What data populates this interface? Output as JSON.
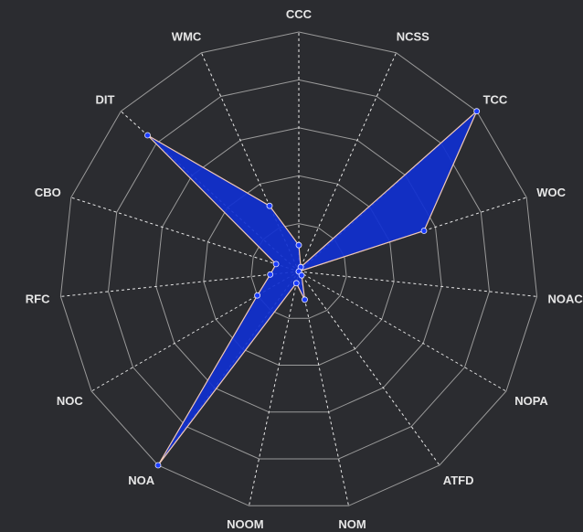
{
  "chart_data": {
    "type": "radar",
    "axes": [
      "CCC",
      "NCSS",
      "TCC",
      "WOC",
      "NOAC",
      "NOPA",
      "ATFD",
      "NOM",
      "NOOM",
      "NOA",
      "NOC",
      "RFC",
      "CBO",
      "DIT",
      "WMC"
    ],
    "values": [
      0.11,
      0.02,
      1.0,
      0.55,
      0.0,
      0.0,
      0.02,
      0.12,
      0.05,
      1.0,
      0.2,
      0.12,
      0.1,
      0.85,
      0.3
    ],
    "range": [
      0,
      1
    ],
    "rings": 5,
    "colors": {
      "fill": "#1030d0",
      "stroke": "#f2c9b8",
      "point": "#1a3cff",
      "grid": "#9a9a9a",
      "spoke": "#e8e8e8",
      "background": "#2b2c30"
    }
  }
}
